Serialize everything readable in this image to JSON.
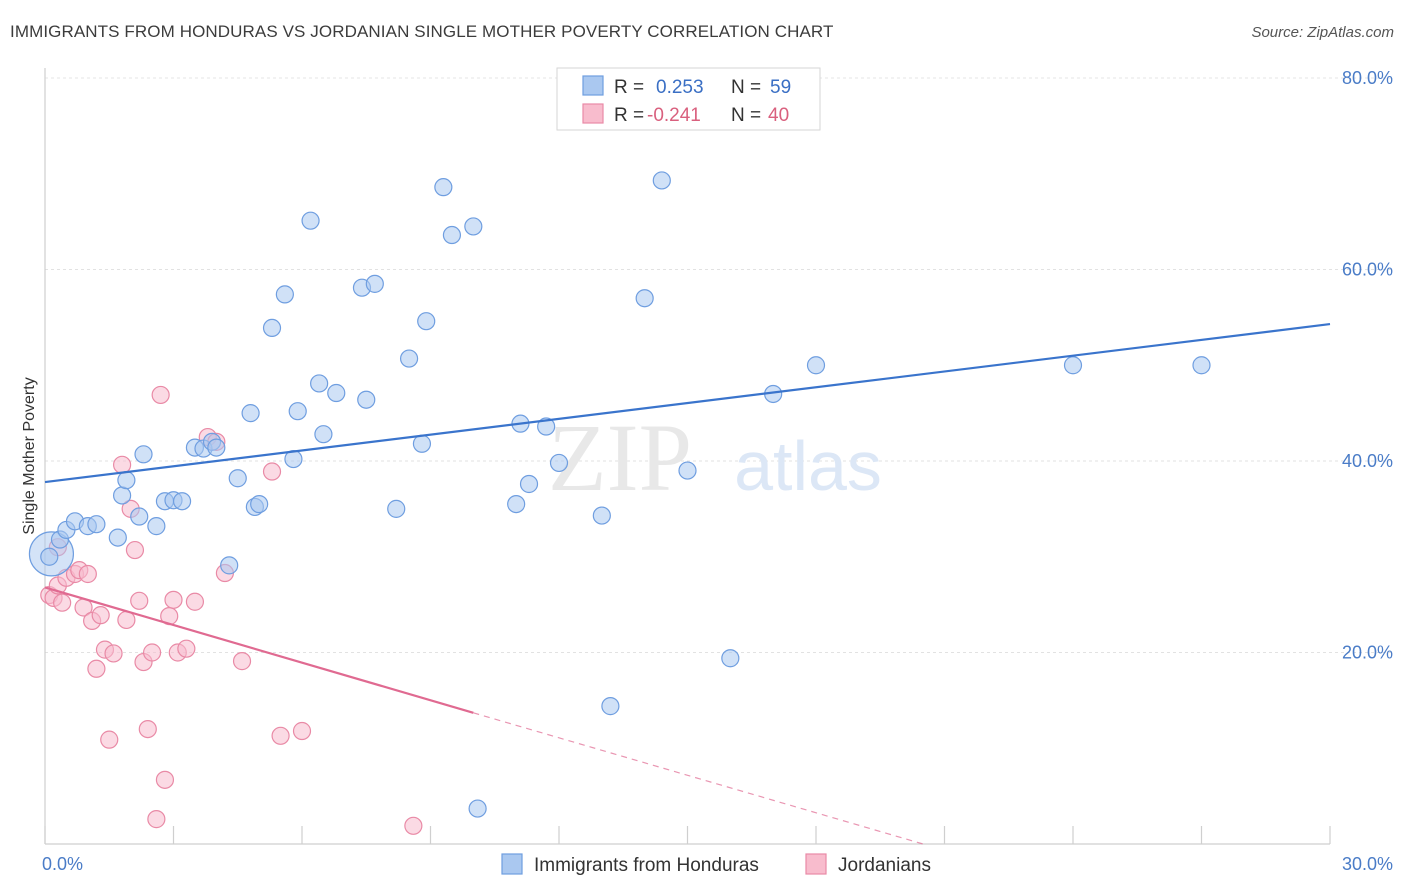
{
  "title": "IMMIGRANTS FROM HONDURAS VS JORDANIAN SINGLE MOTHER POVERTY CORRELATION CHART",
  "source": "Source: ZipAtlas.com",
  "watermark": {
    "zip": "ZIP",
    "atlas": "atlas"
  },
  "legend": {
    "r_label": "R =",
    "n_label": "N =",
    "items": [
      {
        "r": "0.253",
        "n": "59",
        "color": "#aac8f0",
        "stroke": "#6f9ee0"
      },
      {
        "r": "-0.241",
        "n": "40",
        "color": "#f8bccd",
        "stroke": "#e98aa6"
      }
    ]
  },
  "chart_data": {
    "type": "scatter",
    "title": "IMMIGRANTS FROM HONDURAS VS JORDANIAN SINGLE MOTHER POVERTY CORRELATION CHART",
    "xlabel": "",
    "ylabel": "Single Mother Poverty",
    "xlim": [
      0,
      30
    ],
    "ylim": [
      0,
      80
    ],
    "x_tick_labels": [
      "0.0%",
      "30.0%"
    ],
    "y_ticks": [
      20,
      40,
      60,
      80
    ],
    "y_tick_labels": [
      "20.0%",
      "40.0%",
      "60.0%",
      "80.0%"
    ],
    "grid": true,
    "legend_position": "top-center",
    "series": [
      {
        "name": "Immigrants from Honduras",
        "color": "#aac8f0",
        "stroke": "#6f9ee0",
        "line_color": "#3a74cc",
        "trend": {
          "x": [
            0,
            30
          ],
          "y": [
            37.8,
            54.3
          ]
        },
        "points": [
          [
            0.1,
            30.0
          ],
          [
            0.35,
            31.8
          ],
          [
            0.5,
            32.8
          ],
          [
            0.7,
            33.7
          ],
          [
            1.0,
            33.2
          ],
          [
            1.2,
            33.4
          ],
          [
            1.7,
            32.0
          ],
          [
            1.8,
            36.4
          ],
          [
            1.9,
            38.0
          ],
          [
            2.2,
            34.2
          ],
          [
            2.3,
            40.7
          ],
          [
            2.6,
            33.2
          ],
          [
            2.8,
            35.8
          ],
          [
            3.0,
            35.9
          ],
          [
            3.2,
            35.8
          ],
          [
            3.5,
            41.4
          ],
          [
            3.7,
            41.3
          ],
          [
            3.9,
            42.0
          ],
          [
            4.0,
            41.4
          ],
          [
            4.3,
            29.1
          ],
          [
            4.5,
            38.2
          ],
          [
            4.8,
            45.0
          ],
          [
            4.9,
            35.2
          ],
          [
            5.0,
            35.5
          ],
          [
            5.3,
            53.9
          ],
          [
            5.6,
            57.4
          ],
          [
            5.8,
            40.2
          ],
          [
            5.9,
            45.2
          ],
          [
            6.2,
            65.1
          ],
          [
            6.4,
            48.1
          ],
          [
            6.5,
            42.8
          ],
          [
            6.8,
            47.1
          ],
          [
            7.4,
            58.1
          ],
          [
            7.5,
            46.4
          ],
          [
            7.7,
            58.5
          ],
          [
            8.2,
            35.0
          ],
          [
            8.5,
            50.7
          ],
          [
            8.8,
            41.8
          ],
          [
            8.9,
            54.6
          ],
          [
            9.3,
            68.6
          ],
          [
            9.5,
            63.6
          ],
          [
            10.0,
            64.5
          ],
          [
            10.1,
            3.7
          ],
          [
            11.0,
            35.5
          ],
          [
            11.1,
            43.9
          ],
          [
            11.3,
            37.6
          ],
          [
            11.7,
            43.6
          ],
          [
            12.0,
            39.8
          ],
          [
            13.0,
            34.3
          ],
          [
            13.2,
            14.4
          ],
          [
            14.0,
            57.0
          ],
          [
            14.4,
            69.3
          ],
          [
            15.0,
            39.0
          ],
          [
            16.0,
            19.4
          ],
          [
            17.0,
            47.0
          ],
          [
            18.0,
            50.0
          ],
          [
            24.0,
            50.0
          ],
          [
            27.0,
            50.0
          ]
        ],
        "large_point": [
          0.15,
          30.3
        ]
      },
      {
        "name": "Jordanians",
        "color": "#f8bccd",
        "stroke": "#e98aa6",
        "line_color": "#e06a91",
        "trend": {
          "x": [
            0,
            10
          ],
          "y": [
            26.8,
            13.7
          ]
        },
        "trend_dashed": {
          "x": [
            10,
            20.5
          ],
          "y": [
            13.7,
            0
          ]
        },
        "points": [
          [
            0.1,
            26.0
          ],
          [
            0.2,
            25.7
          ],
          [
            0.3,
            27.0
          ],
          [
            0.4,
            25.2
          ],
          [
            0.5,
            27.8
          ],
          [
            0.7,
            28.2
          ],
          [
            0.8,
            28.6
          ],
          [
            0.9,
            24.7
          ],
          [
            1.0,
            28.2
          ],
          [
            1.1,
            23.3
          ],
          [
            1.2,
            18.3
          ],
          [
            1.3,
            23.9
          ],
          [
            1.4,
            20.3
          ],
          [
            1.5,
            10.9
          ],
          [
            1.6,
            19.9
          ],
          [
            1.8,
            39.6
          ],
          [
            1.9,
            23.4
          ],
          [
            2.0,
            35.0
          ],
          [
            2.1,
            30.7
          ],
          [
            2.2,
            25.4
          ],
          [
            2.3,
            19.0
          ],
          [
            2.4,
            12.0
          ],
          [
            2.5,
            20.0
          ],
          [
            2.6,
            2.6
          ],
          [
            2.7,
            46.9
          ],
          [
            2.8,
            6.7
          ],
          [
            2.9,
            23.8
          ],
          [
            3.0,
            25.5
          ],
          [
            3.1,
            20.0
          ],
          [
            3.3,
            20.4
          ],
          [
            3.5,
            25.3
          ],
          [
            3.8,
            42.5
          ],
          [
            4.0,
            42.0
          ],
          [
            4.2,
            28.3
          ],
          [
            4.6,
            19.1
          ],
          [
            5.3,
            38.9
          ],
          [
            5.5,
            11.3
          ],
          [
            6.0,
            11.8
          ],
          [
            8.6,
            1.9
          ],
          [
            0.3,
            31.0
          ]
        ]
      }
    ]
  },
  "bottom_legend": [
    {
      "label": "Immigrants from Honduras",
      "color": "#aac8f0",
      "stroke": "#6f9ee0"
    },
    {
      "label": "Jordanians",
      "color": "#f8bccd",
      "stroke": "#e98aa6"
    }
  ]
}
